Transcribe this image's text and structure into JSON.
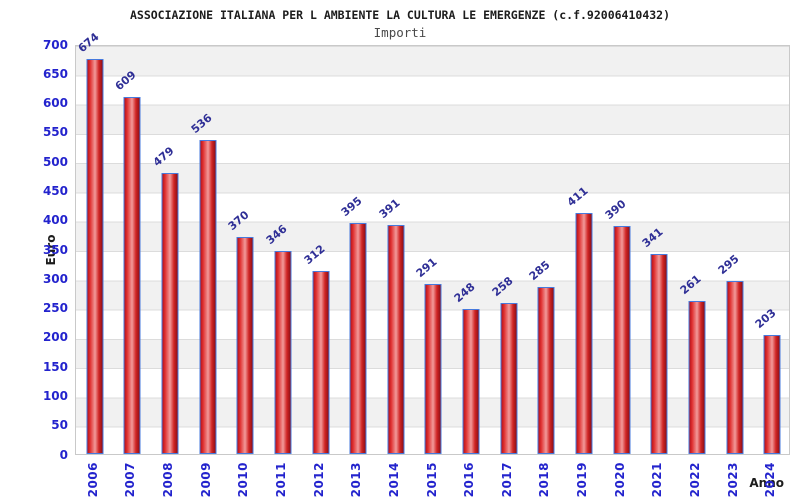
{
  "header": {
    "title": "ASSOCIAZIONE ITALIANA PER L AMBIENTE LA CULTURA LE EMERGENZE (c.f.92006410432)",
    "subtitle": "Importi"
  },
  "chart_data": {
    "type": "bar",
    "title": "ASSOCIAZIONE ITALIANA PER L AMBIENTE LA CULTURA LE EMERGENZE (c.f.92006410432)",
    "subtitle": "Importi",
    "xlabel": "Anno",
    "ylabel": "Euro",
    "categories": [
      "2006",
      "2007",
      "2008",
      "2009",
      "2010",
      "2011",
      "2012",
      "2013",
      "2014",
      "2015",
      "2016",
      "2017",
      "2018",
      "2019",
      "2020",
      "2021",
      "2022",
      "2023",
      "2024"
    ],
    "values": [
      674,
      609,
      479,
      536,
      370,
      346,
      312,
      395,
      391,
      291,
      248,
      258,
      285,
      411,
      390,
      341,
      261,
      295,
      203
    ],
    "ylim": [
      0,
      700
    ],
    "ytick_step": 50,
    "yticks": [
      0,
      50,
      100,
      150,
      200,
      250,
      300,
      350,
      400,
      450,
      500,
      550,
      600,
      650,
      700
    ],
    "grid": "horizontal gridlines every 50 with alternating white/grey bands",
    "legend": "none",
    "colors": {
      "bar_fill_center": "#f29a9a",
      "bar_fill_main": "#e03131",
      "bar_fill_edge": "#8f0f16",
      "bar_border": "#4679dd",
      "axis_tick_text": "#2323cd",
      "value_label_text": "#2f2f96",
      "band_grey": "#f1f1f1",
      "gridline": "#dcdcdc",
      "title_text": "#1c1c1c"
    }
  }
}
